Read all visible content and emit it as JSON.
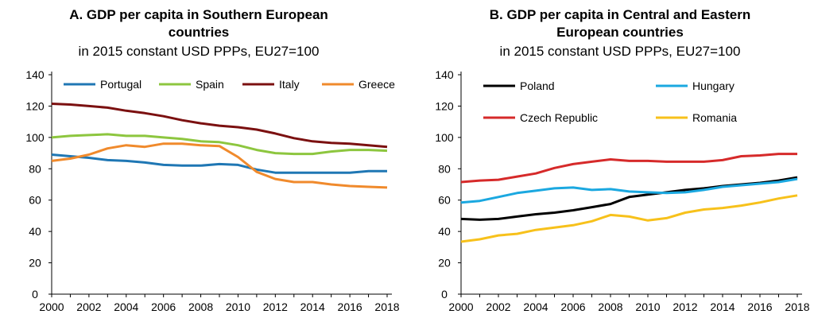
{
  "chart_data": [
    {
      "type": "line",
      "title_lines": [
        "A. GDP per capita in Southern European",
        "countries"
      ],
      "subtitle": "in 2015 constant USD PPPs, EU27=100",
      "x": [
        2000,
        2001,
        2002,
        2003,
        2004,
        2005,
        2006,
        2007,
        2008,
        2009,
        2010,
        2011,
        2012,
        2013,
        2014,
        2015,
        2016,
        2017,
        2018
      ],
      "x_tick_labels": [
        "2000",
        "2002",
        "2004",
        "2006",
        "2008",
        "2010",
        "2012",
        "2014",
        "2016",
        "2018"
      ],
      "y_tick_labels": [
        "0",
        "20",
        "40",
        "60",
        "80",
        "100",
        "120",
        "140"
      ],
      "ylim": [
        0,
        140
      ],
      "series": [
        {
          "name": "Portugal",
          "color": "#1f77b4",
          "values": [
            89,
            88,
            87,
            85.5,
            85,
            84,
            82.5,
            82,
            82,
            83,
            82.5,
            79.5,
            77.5,
            77.5,
            77.5,
            77.5,
            77.5,
            78.5,
            78.5
          ]
        },
        {
          "name": "Spain",
          "color": "#8dc63f",
          "values": [
            100,
            101,
            101.5,
            102,
            101,
            101,
            100,
            99,
            97.5,
            97,
            95,
            92,
            90,
            89.5,
            89.5,
            91,
            92,
            92,
            91.5
          ]
        },
        {
          "name": "Italy",
          "color": "#7b1010",
          "values": [
            121.5,
            121,
            120,
            119,
            117,
            115.5,
            113.5,
            111,
            109,
            107.5,
            106.5,
            105,
            102.5,
            99.5,
            97.5,
            96.5,
            96,
            95,
            94
          ]
        },
        {
          "name": "Greece",
          "color": "#f08a2c",
          "values": [
            85,
            86.5,
            89,
            93,
            95,
            94,
            96,
            96,
            95,
            94.5,
            87.5,
            78,
            73.5,
            71.5,
            71.5,
            70,
            69,
            68.5,
            68
          ]
        }
      ]
    },
    {
      "type": "line",
      "title_lines": [
        "B. GDP per capita in Central and Eastern",
        "European countries"
      ],
      "subtitle": "in 2015 constant USD PPPs, EU27=100",
      "x": [
        2000,
        2001,
        2002,
        2003,
        2004,
        2005,
        2006,
        2007,
        2008,
        2009,
        2010,
        2011,
        2012,
        2013,
        2014,
        2015,
        2016,
        2017,
        2018
      ],
      "x_tick_labels": [
        "2000",
        "2002",
        "2004",
        "2006",
        "2008",
        "2010",
        "2012",
        "2014",
        "2016",
        "2018"
      ],
      "y_tick_labels": [
        "0",
        "20",
        "40",
        "60",
        "80",
        "100",
        "120",
        "140"
      ],
      "ylim": [
        0,
        140
      ],
      "series": [
        {
          "name": "Poland",
          "color": "#000000",
          "values": [
            48,
            47.5,
            48,
            49.5,
            51,
            52,
            53.5,
            55.5,
            57.5,
            62,
            63.5,
            65,
            66.5,
            67.5,
            69,
            70,
            71,
            72.5,
            74.5
          ]
        },
        {
          "name": "Hungary",
          "color": "#1ba8e0",
          "values": [
            58.5,
            59.5,
            62,
            64.5,
            66,
            67.5,
            68,
            66.5,
            67,
            65.5,
            65,
            64.5,
            65,
            66.5,
            68.5,
            69.5,
            70.5,
            71.5,
            73.5
          ]
        },
        {
          "name": "Czech Republic",
          "color": "#d62a2a",
          "values": [
            71.5,
            72.5,
            73,
            75,
            77,
            80.5,
            83,
            84.5,
            86,
            85,
            85,
            84.5,
            84.5,
            84.5,
            85.5,
            88,
            88.5,
            89.5,
            89.5
          ]
        },
        {
          "name": "Romania",
          "color": "#f7c11b",
          "values": [
            33.5,
            35,
            37.5,
            38.5,
            41,
            42.5,
            44,
            46.5,
            50.5,
            49.5,
            47,
            48.5,
            52,
            54,
            55,
            56.5,
            58.5,
            61,
            63
          ]
        }
      ]
    }
  ]
}
